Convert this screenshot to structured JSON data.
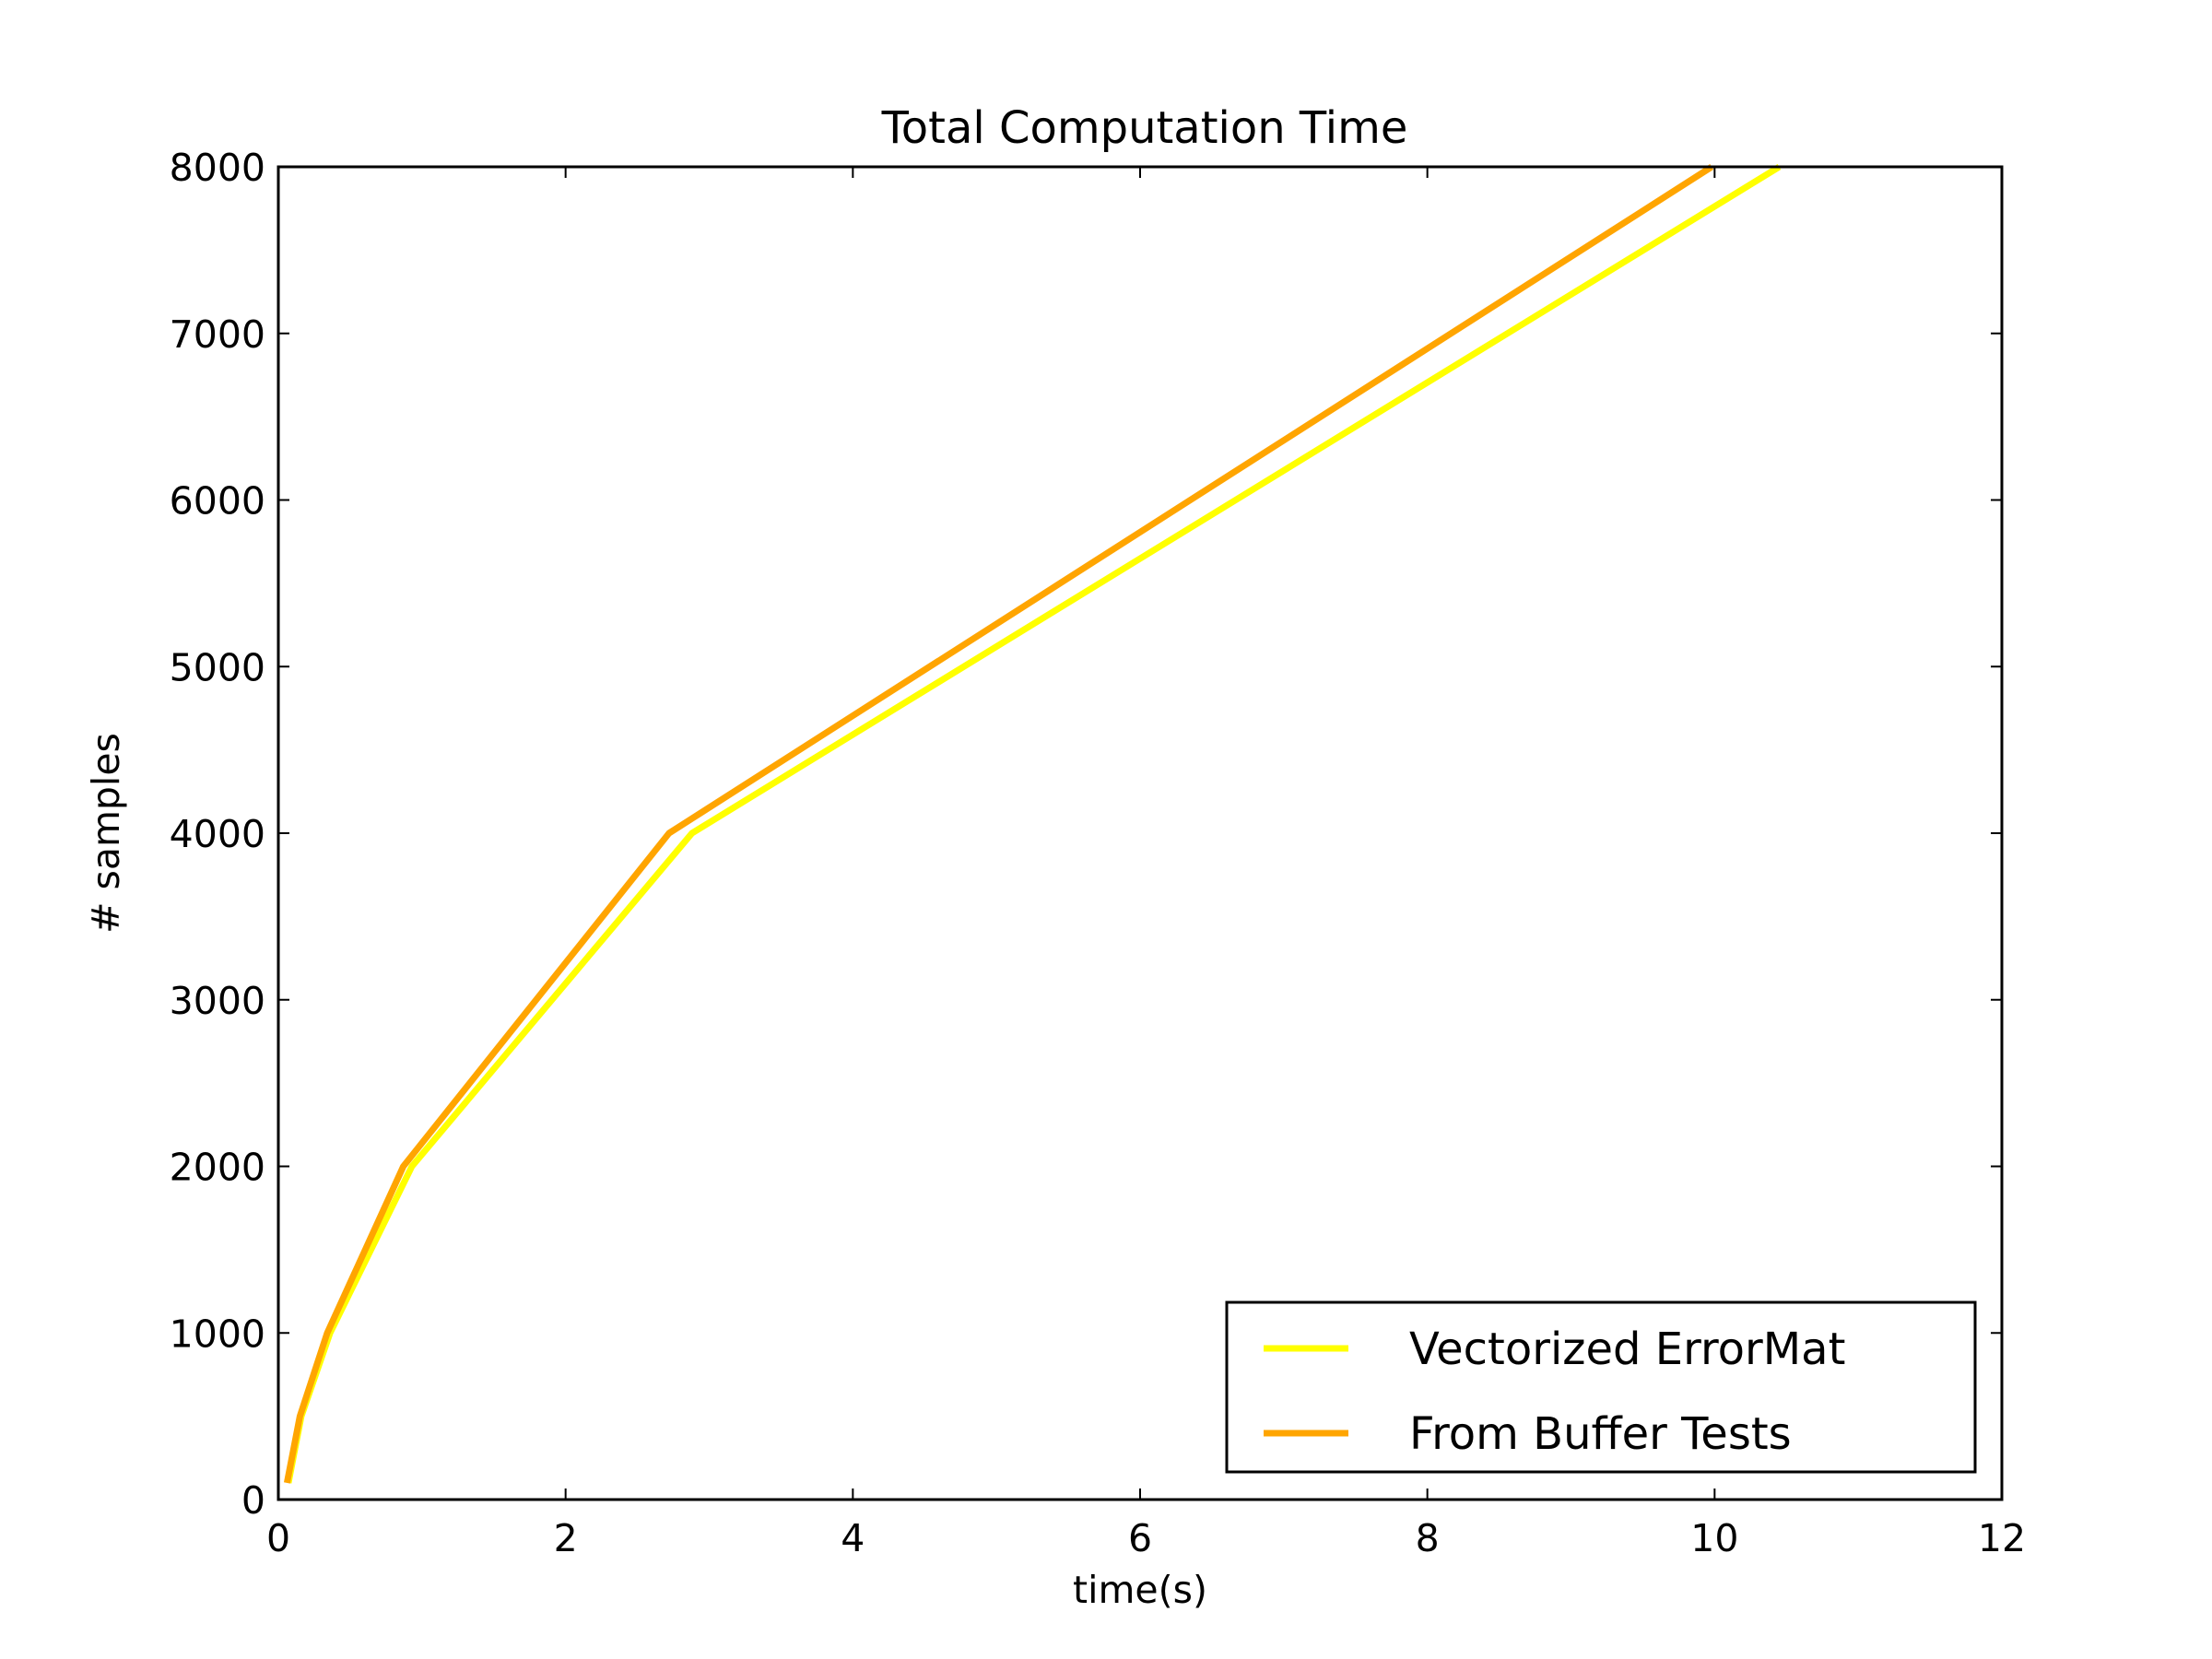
{
  "chart_data": {
    "type": "line",
    "title": "Total Computation Time",
    "xlabel": "time(s)",
    "ylabel": "# samples",
    "xlim": [
      0,
      12
    ],
    "ylim": [
      0,
      8000
    ],
    "xticks": [
      "0",
      "2",
      "4",
      "6",
      "8",
      "10",
      "12"
    ],
    "yticks": [
      "0",
      "1000",
      "2000",
      "3000",
      "4000",
      "5000",
      "6000",
      "7000",
      "8000"
    ],
    "grid": false,
    "legend_position": "bottom-right",
    "series": [
      {
        "name": "Vectorized ErrorMat",
        "color": "#ffff00",
        "points": [
          [
            0.07,
            100
          ],
          [
            0.16,
            500
          ],
          [
            0.36,
            1000
          ],
          [
            0.93,
            2000
          ],
          [
            2.88,
            4000
          ],
          [
            10.45,
            8000
          ]
        ]
      },
      {
        "name": "From Buffer Tests",
        "color": "#ffa500",
        "points": [
          [
            0.06,
            100
          ],
          [
            0.15,
            500
          ],
          [
            0.34,
            1000
          ],
          [
            0.87,
            2000
          ],
          [
            2.72,
            4000
          ],
          [
            9.98,
            8000
          ]
        ]
      }
    ]
  }
}
